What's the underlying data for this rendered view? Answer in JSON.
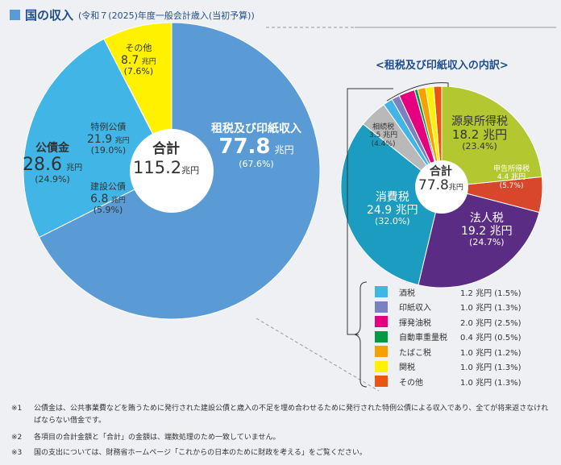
{
  "header": {
    "title": "国の収入",
    "subtitle": "(令和７(2025)年度一般会計歳入(当初予算))"
  },
  "chart_data": [
    {
      "type": "pie",
      "title": "国の収入",
      "total_label": "合計",
      "total": "115.2",
      "unit": "兆円",
      "slices": [
        {
          "name": "租税及び印紙収入",
          "value": 77.8,
          "percent": "(67.6%)",
          "color": "#5b9bd5"
        },
        {
          "name": "公債金",
          "value": 28.6,
          "percent": "(24.9%)",
          "color": "#41b6e6",
          "children": [
            {
              "name": "建設公債",
              "value": 6.8,
              "percent": "(5.9%)",
              "color": "#c9e9f8"
            },
            {
              "name": "特例公債",
              "value": 21.9,
              "percent": "(19.0%)",
              "color": "#a7dcf3"
            }
          ]
        },
        {
          "name": "その他",
          "value": 8.7,
          "percent": "(7.6%)",
          "color": "#fff100"
        }
      ]
    },
    {
      "type": "pie",
      "title": "<租税及び印紙収入の内訳>",
      "total_label": "合計",
      "total": "77.8",
      "unit": "兆円",
      "slices": [
        {
          "name": "源泉所得税",
          "value": 18.2,
          "percent": "(23.4%)",
          "color": "#b3c731"
        },
        {
          "name": "申告所得税",
          "value": 4.4,
          "percent": "(5.7%)",
          "color": "#d8472c"
        },
        {
          "name": "法人税",
          "value": 19.2,
          "percent": "(24.7%)",
          "color": "#5a2c84"
        },
        {
          "name": "消費税",
          "value": 24.9,
          "percent": "(32.0%)",
          "color": "#1b9cc0"
        },
        {
          "name": "相続税",
          "value": 3.5,
          "percent": "(4.4%)",
          "color": "#b9b9b9"
        },
        {
          "name": "酒税",
          "value": 1.2,
          "percent": "(1.5%)",
          "color": "#41b6e6"
        },
        {
          "name": "印紙収入",
          "value": 1.0,
          "percent": "(1.3%)",
          "color": "#7b80c0"
        },
        {
          "name": "揮発油税",
          "value": 2.0,
          "percent": "(2.5%)",
          "color": "#e4007f"
        },
        {
          "name": "自動車重量税",
          "value": 0.4,
          "percent": "(0.5%)",
          "color": "#009944"
        },
        {
          "name": "たばこ税",
          "value": 1.0,
          "percent": "(1.2%)",
          "color": "#f5a200"
        },
        {
          "name": "関税",
          "value": 1.0,
          "percent": "(1.3%)",
          "color": "#fff100"
        },
        {
          "name": "その他",
          "value": 1.0,
          "percent": "(1.3%)",
          "color": "#e95513"
        }
      ]
    }
  ],
  "value_texts": {
    "l0": "77.8",
    "l1": "28.6",
    "l1a": "21.9",
    "l1b": "6.8",
    "l2": "8.7",
    "r0": "18.2 兆円",
    "r1": "4.4 兆円",
    "r2": "19.2 兆円",
    "r3": "24.9 兆円",
    "r4": "3.5 兆円"
  },
  "legend": [
    {
      "name": "酒税",
      "value": "1.2 兆円 (1.5%)",
      "color": "#41b6e6"
    },
    {
      "name": "印紙収入",
      "value": "1.0 兆円 (1.3%)",
      "color": "#7b80c0"
    },
    {
      "name": "揮発油税",
      "value": "2.0 兆円 (2.5%)",
      "color": "#e4007f"
    },
    {
      "name": "自動車重量税",
      "value": "0.4 兆円 (0.5%)",
      "color": "#009944"
    },
    {
      "name": "たばこ税",
      "value": "1.0 兆円 (1.2%)",
      "color": "#f5a200"
    },
    {
      "name": "関税",
      "value": "1.0 兆円 (1.3%)",
      "color": "#fff100"
    },
    {
      "name": "その他",
      "value": "1.0 兆円 (1.3%)",
      "color": "#e95513"
    }
  ],
  "notes": [
    {
      "mark": "※1",
      "text": "公債金は、公共事業費などを賄うために発行された建設公債と歳入の不足を埋め合わせるために発行された特例公債による収入であり、全てが将来返さなければならない借金です。"
    },
    {
      "mark": "※2",
      "text": "各項目の合計金額と「合計」の金額は、端数処理のため一致していません。"
    },
    {
      "mark": "※3",
      "text": "国の支出については、財務省ホームページ「これからの日本のために財政を考える」をご覧ください。"
    }
  ]
}
